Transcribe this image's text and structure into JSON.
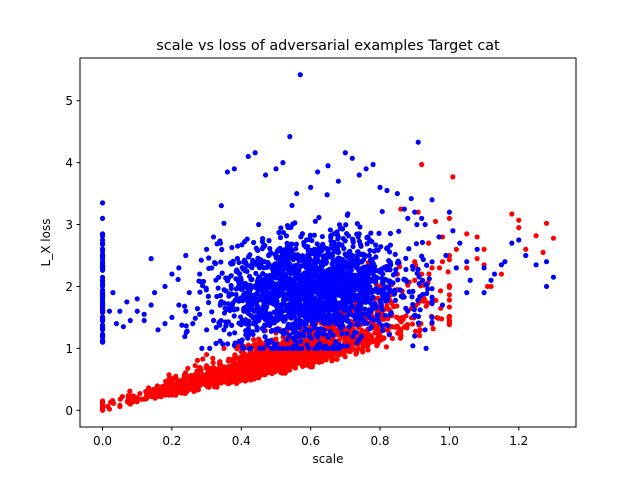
{
  "chart_data": {
    "type": "scatter",
    "title": "scale vs loss of adversarial examples Target cat",
    "xlabel": "scale",
    "ylabel": "L_X loss",
    "xlim": [
      -0.065,
      1.365
    ],
    "ylim": [
      -0.27,
      5.69
    ],
    "xticks": [
      0.0,
      0.2,
      0.4,
      0.6,
      0.8,
      1.0,
      1.2
    ],
    "xtick_labels": [
      "0.0",
      "0.2",
      "0.4",
      "0.6",
      "0.8",
      "1.0",
      "1.2"
    ],
    "yticks": [
      0,
      1,
      2,
      3,
      4,
      5
    ],
    "ytick_labels": [
      "0",
      "1",
      "2",
      "3",
      "4",
      "5"
    ],
    "grid": false,
    "legend": "none",
    "colors": {
      "series_red": "#ff0000",
      "series_blue": "#0000ff",
      "axes": "#000000"
    },
    "series": [
      {
        "color": "#ff0000",
        "description_points": [
          [
            0.0,
            0.0
          ],
          [
            0.02,
            0.02
          ],
          [
            0.05,
            0.06
          ],
          [
            0.08,
            0.1
          ],
          [
            0.1,
            0.14
          ],
          [
            0.12,
            0.18
          ],
          [
            0.15,
            0.24
          ],
          [
            0.18,
            0.3
          ],
          [
            0.2,
            0.34
          ],
          [
            0.22,
            0.4
          ],
          [
            0.25,
            0.46
          ],
          [
            0.28,
            0.52
          ],
          [
            0.3,
            0.58
          ],
          [
            0.33,
            0.64
          ],
          [
            0.35,
            0.7
          ],
          [
            0.38,
            0.75
          ],
          [
            0.4,
            0.8
          ],
          [
            0.42,
            0.86
          ],
          [
            0.45,
            0.92
          ],
          [
            0.48,
            0.98
          ],
          [
            0.5,
            1.04
          ],
          [
            0.52,
            1.1
          ],
          [
            0.55,
            1.15
          ],
          [
            0.58,
            1.2
          ],
          [
            0.6,
            1.26
          ],
          [
            0.62,
            1.3
          ],
          [
            0.65,
            1.36
          ],
          [
            0.68,
            1.42
          ],
          [
            0.7,
            1.48
          ],
          [
            0.72,
            1.55
          ],
          [
            0.75,
            1.62
          ],
          [
            0.78,
            1.7
          ],
          [
            0.8,
            1.78
          ],
          [
            0.82,
            1.85
          ],
          [
            0.85,
            1.95
          ],
          [
            0.88,
            2.02
          ],
          [
            0.9,
            2.1
          ],
          [
            0.92,
            2.2
          ],
          [
            0.95,
            2.3
          ],
          [
            0.98,
            2.4
          ],
          [
            1.0,
            2.5
          ],
          [
            0.3,
            0.9
          ],
          [
            0.35,
            1.0
          ],
          [
            0.4,
            1.1
          ],
          [
            0.45,
            1.15
          ],
          [
            0.5,
            1.25
          ],
          [
            0.55,
            1.35
          ],
          [
            0.6,
            1.45
          ],
          [
            0.65,
            1.55
          ],
          [
            0.7,
            1.65
          ],
          [
            0.75,
            1.8
          ],
          [
            0.8,
            2.0
          ],
          [
            0.85,
            2.2
          ],
          [
            0.9,
            2.4
          ],
          [
            0.92,
            3.97
          ],
          [
            0.91,
            3.2
          ],
          [
            1.01,
            3.77
          ],
          [
            1.0,
            3.1
          ],
          [
            1.05,
            2.85
          ],
          [
            1.08,
            2.8
          ],
          [
            1.1,
            2.6
          ],
          [
            1.05,
            2.3
          ],
          [
            1.11,
            2.0
          ],
          [
            1.12,
            2.0
          ],
          [
            1.18,
            3.17
          ],
          [
            1.2,
            2.95
          ],
          [
            1.2,
            3.07
          ],
          [
            1.22,
            2.6
          ],
          [
            1.25,
            2.82
          ],
          [
            1.28,
            3.02
          ],
          [
            1.3,
            2.78
          ],
          [
            1.27,
            2.55
          ],
          [
            1.15,
            2.2
          ],
          [
            1.1,
            2.35
          ],
          [
            1.08,
            2.45
          ],
          [
            1.02,
            2.6
          ],
          [
            0.98,
            2.8
          ],
          [
            0.96,
            3.05
          ],
          [
            0.94,
            2.7
          ],
          [
            0.86,
            3.25
          ],
          [
            0.3,
            0.72
          ],
          [
            0.4,
            0.95
          ],
          [
            0.5,
            1.15
          ],
          [
            0.6,
            1.35
          ],
          [
            0.7,
            1.5
          ],
          [
            0.25,
            0.55
          ],
          [
            0.2,
            0.42
          ],
          [
            0.15,
            0.3
          ],
          [
            0.1,
            0.2
          ],
          [
            0.05,
            0.08
          ]
        ]
      },
      {
        "color": "#0000ff",
        "description_points": [
          [
            0.0,
            1.1
          ],
          [
            0.0,
            1.3
          ],
          [
            0.0,
            1.5
          ],
          [
            0.0,
            1.7
          ],
          [
            0.0,
            1.9
          ],
          [
            0.0,
            2.1
          ],
          [
            0.0,
            2.3
          ],
          [
            0.0,
            2.5
          ],
          [
            0.0,
            2.7
          ],
          [
            0.0,
            2.85
          ],
          [
            0.0,
            3.1
          ],
          [
            0.0,
            3.35
          ],
          [
            0.02,
            1.6
          ],
          [
            0.03,
            1.9
          ],
          [
            0.05,
            1.6
          ],
          [
            0.07,
            1.75
          ],
          [
            0.1,
            1.8
          ],
          [
            0.12,
            1.55
          ],
          [
            0.14,
            2.45
          ],
          [
            0.15,
            1.9
          ],
          [
            0.18,
            2.0
          ],
          [
            0.2,
            2.2
          ],
          [
            0.22,
            2.3
          ],
          [
            0.24,
            2.5
          ],
          [
            0.25,
            1.9
          ],
          [
            0.28,
            2.2
          ],
          [
            0.3,
            2.6
          ],
          [
            0.32,
            2.8
          ],
          [
            0.34,
            2.7
          ],
          [
            0.35,
            3.02
          ],
          [
            0.36,
            3.85
          ],
          [
            0.38,
            3.9
          ],
          [
            0.42,
            4.1
          ],
          [
            0.44,
            4.16
          ],
          [
            0.45,
            3.0
          ],
          [
            0.47,
            3.8
          ],
          [
            0.5,
            3.9
          ],
          [
            0.52,
            4.0
          ],
          [
            0.54,
            4.42
          ],
          [
            0.56,
            3.5
          ],
          [
            0.57,
            5.42
          ],
          [
            0.6,
            3.6
          ],
          [
            0.62,
            3.85
          ],
          [
            0.65,
            3.95
          ],
          [
            0.68,
            3.7
          ],
          [
            0.7,
            4.16
          ],
          [
            0.72,
            4.07
          ],
          [
            0.74,
            3.8
          ],
          [
            0.76,
            3.9
          ],
          [
            0.78,
            3.97
          ],
          [
            0.8,
            3.6
          ],
          [
            0.82,
            3.55
          ],
          [
            0.85,
            3.5
          ],
          [
            0.87,
            3.25
          ],
          [
            0.88,
            3.1
          ],
          [
            0.89,
            3.42
          ],
          [
            0.9,
            3.2
          ],
          [
            0.91,
            4.33
          ],
          [
            0.92,
            3.1
          ],
          [
            0.93,
            3.0
          ],
          [
            0.95,
            3.4
          ],
          [
            0.97,
            2.8
          ],
          [
            0.99,
            2.5
          ],
          [
            1.0,
            3.2
          ],
          [
            1.01,
            2.9
          ],
          [
            1.03,
            2.7
          ],
          [
            1.05,
            2.4
          ],
          [
            1.06,
            2.1
          ],
          [
            1.08,
            2.6
          ],
          [
            1.1,
            2.3
          ],
          [
            1.13,
            2.2
          ],
          [
            1.15,
            2.35
          ],
          [
            1.2,
            2.75
          ],
          [
            1.22,
            2.5
          ],
          [
            1.25,
            2.35
          ],
          [
            1.28,
            2.4
          ],
          [
            1.3,
            2.15
          ],
          [
            1.28,
            2.0
          ],
          [
            1.18,
            2.7
          ],
          [
            1.16,
            2.4
          ],
          [
            1.12,
            2.1
          ],
          [
            1.1,
            1.9
          ],
          [
            1.05,
            1.9
          ],
          [
            1.02,
            2.3
          ],
          [
            0.98,
            1.7
          ],
          [
            0.95,
            1.5
          ],
          [
            0.93,
            1.3
          ],
          [
            0.9,
            1.2
          ],
          [
            0.88,
            1.6
          ],
          [
            0.4,
            1.1
          ],
          [
            0.42,
            1.2
          ],
          [
            0.38,
            1.05
          ],
          [
            0.35,
            1.3
          ],
          [
            0.32,
            1.45
          ],
          [
            0.3,
            1.3
          ],
          [
            0.28,
            1.55
          ],
          [
            0.26,
            1.4
          ],
          [
            0.24,
            1.6
          ],
          [
            0.22,
            1.7
          ],
          [
            0.2,
            1.5
          ],
          [
            0.18,
            1.4
          ],
          [
            0.16,
            1.3
          ],
          [
            0.14,
            1.7
          ],
          [
            0.12,
            1.45
          ],
          [
            0.1,
            1.6
          ],
          [
            0.08,
            1.45
          ],
          [
            0.06,
            1.35
          ],
          [
            0.04,
            1.4
          ]
        ]
      }
    ]
  }
}
